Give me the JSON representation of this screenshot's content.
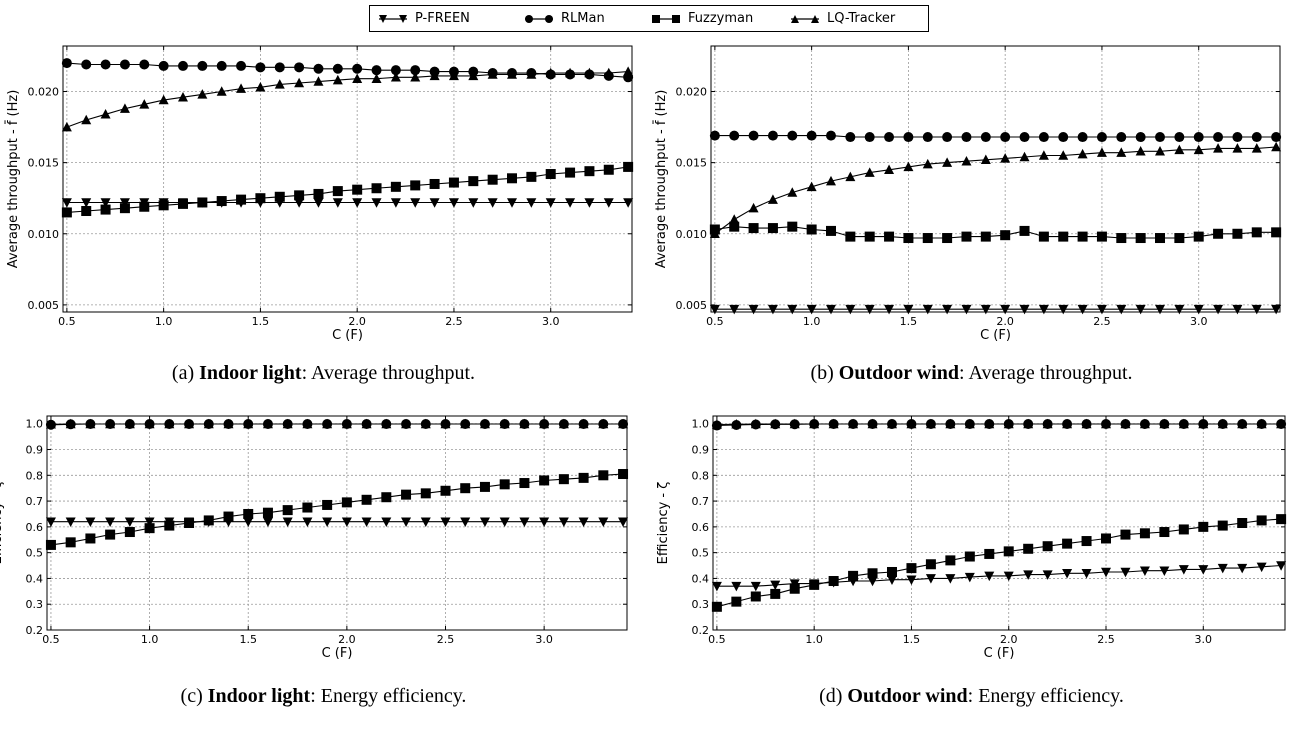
{
  "legend": {
    "entries": [
      {
        "label": "P-FREEN",
        "marker": "triangle-down"
      },
      {
        "label": "RLMan",
        "marker": "circle"
      },
      {
        "label": "Fuzzyman",
        "marker": "square"
      },
      {
        "label": "LQ-Tracker",
        "marker": "triangle-up"
      }
    ]
  },
  "captions": [
    {
      "prefix": "(a) ",
      "bold": "Indoor light",
      "rest": ": Average throughput."
    },
    {
      "prefix": "(b) ",
      "bold": "Outdoor wind",
      "rest": ": Average throughput."
    },
    {
      "prefix": "(c) ",
      "bold": "Indoor light",
      "rest": ": Energy efficiency."
    },
    {
      "prefix": "(d) ",
      "bold": "Outdoor wind",
      "rest": ": Energy efficiency."
    }
  ],
  "chart_data": [
    {
      "type": "line",
      "xlabel": "C (F)",
      "ylabel": "Average throughput - f̄ (Hz)",
      "xlim": [
        0.48,
        3.42
      ],
      "ylim": [
        0.0045,
        0.0232
      ],
      "xticks": [
        "0.5",
        "1.0",
        "1.5",
        "2.0",
        "2.5",
        "3.0"
      ],
      "yticks": [
        "0.005",
        "0.010",
        "0.015",
        "0.020"
      ],
      "grid": true,
      "x": [
        0.5,
        0.6,
        0.7,
        0.8,
        0.9,
        1.0,
        1.1,
        1.2,
        1.3,
        1.4,
        1.5,
        1.6,
        1.7,
        1.8,
        1.9,
        2.0,
        2.1,
        2.2,
        2.3,
        2.4,
        2.5,
        2.6,
        2.7,
        2.8,
        2.9,
        3.0,
        3.1,
        3.2,
        3.3,
        3.4
      ],
      "series": [
        {
          "name": "P-FREEN",
          "marker": "triangle-down",
          "values": [
            0.0122,
            0.0122,
            0.0122,
            0.0122,
            0.0122,
            0.0122,
            0.0122,
            0.0122,
            0.0122,
            0.0122,
            0.0122,
            0.0122,
            0.0122,
            0.0122,
            0.0122,
            0.0122,
            0.0122,
            0.0122,
            0.0122,
            0.0122,
            0.0122,
            0.0122,
            0.0122,
            0.0122,
            0.0122,
            0.0122,
            0.0122,
            0.0122,
            0.0122,
            0.0122
          ]
        },
        {
          "name": "RLMan",
          "marker": "circle",
          "values": [
            0.022,
            0.0219,
            0.0219,
            0.0219,
            0.0219,
            0.0218,
            0.0218,
            0.0218,
            0.0218,
            0.0218,
            0.0217,
            0.0217,
            0.0217,
            0.0216,
            0.0216,
            0.0216,
            0.0215,
            0.0215,
            0.0215,
            0.0214,
            0.0214,
            0.0214,
            0.0213,
            0.0213,
            0.0213,
            0.0212,
            0.0212,
            0.0212,
            0.0211,
            0.021
          ]
        },
        {
          "name": "Fuzzyman",
          "marker": "square",
          "values": [
            0.0115,
            0.0116,
            0.0117,
            0.0118,
            0.0119,
            0.012,
            0.0121,
            0.0122,
            0.0123,
            0.0124,
            0.0125,
            0.0126,
            0.0127,
            0.0128,
            0.013,
            0.0131,
            0.0132,
            0.0133,
            0.0134,
            0.0135,
            0.0136,
            0.0137,
            0.0138,
            0.0139,
            0.014,
            0.0142,
            0.0143,
            0.0144,
            0.0145,
            0.0147
          ]
        },
        {
          "name": "LQ-Tracker",
          "marker": "triangle-up",
          "values": [
            0.0175,
            0.018,
            0.0184,
            0.0188,
            0.0191,
            0.0194,
            0.0196,
            0.0198,
            0.02,
            0.0202,
            0.0203,
            0.0205,
            0.0206,
            0.0207,
            0.0208,
            0.0209,
            0.0209,
            0.021,
            0.021,
            0.0211,
            0.0211,
            0.0211,
            0.0212,
            0.0212,
            0.0212,
            0.0213,
            0.0213,
            0.0213,
            0.0213,
            0.0214
          ]
        }
      ]
    },
    {
      "type": "line",
      "xlabel": "C (F)",
      "ylabel": "Average throughput - f̄ (Hz)",
      "xlim": [
        0.48,
        3.42
      ],
      "ylim": [
        0.0045,
        0.0232
      ],
      "xticks": [
        "0.5",
        "1.0",
        "1.5",
        "2.0",
        "2.5",
        "3.0"
      ],
      "yticks": [
        "0.005",
        "0.010",
        "0.015",
        "0.020"
      ],
      "grid": true,
      "x": [
        0.5,
        0.6,
        0.7,
        0.8,
        0.9,
        1.0,
        1.1,
        1.2,
        1.3,
        1.4,
        1.5,
        1.6,
        1.7,
        1.8,
        1.9,
        2.0,
        2.1,
        2.2,
        2.3,
        2.4,
        2.5,
        2.6,
        2.7,
        2.8,
        2.9,
        3.0,
        3.1,
        3.2,
        3.3,
        3.4
      ],
      "series": [
        {
          "name": "P-FREEN",
          "marker": "triangle-down",
          "values": [
            0.0047,
            0.0047,
            0.0047,
            0.0047,
            0.0047,
            0.0047,
            0.0047,
            0.0047,
            0.0047,
            0.0047,
            0.0047,
            0.0047,
            0.0047,
            0.0047,
            0.0047,
            0.0047,
            0.0047,
            0.0047,
            0.0047,
            0.0047,
            0.0047,
            0.0047,
            0.0047,
            0.0047,
            0.0047,
            0.0047,
            0.0047,
            0.0047,
            0.0047,
            0.0047
          ]
        },
        {
          "name": "RLMan",
          "marker": "circle",
          "values": [
            0.0169,
            0.0169,
            0.0169,
            0.0169,
            0.0169,
            0.0169,
            0.0169,
            0.0168,
            0.0168,
            0.0168,
            0.0168,
            0.0168,
            0.0168,
            0.0168,
            0.0168,
            0.0168,
            0.0168,
            0.0168,
            0.0168,
            0.0168,
            0.0168,
            0.0168,
            0.0168,
            0.0168,
            0.0168,
            0.0168,
            0.0168,
            0.0168,
            0.0168,
            0.0168
          ]
        },
        {
          "name": "Fuzzyman",
          "marker": "square",
          "values": [
            0.0103,
            0.0105,
            0.0104,
            0.0104,
            0.0105,
            0.0103,
            0.0102,
            0.0098,
            0.0098,
            0.0098,
            0.0097,
            0.0097,
            0.0097,
            0.0098,
            0.0098,
            0.0099,
            0.0102,
            0.0098,
            0.0098,
            0.0098,
            0.0098,
            0.0097,
            0.0097,
            0.0097,
            0.0097,
            0.0098,
            0.01,
            0.01,
            0.0101,
            0.0101
          ]
        },
        {
          "name": "LQ-Tracker",
          "marker": "triangle-up",
          "values": [
            0.01,
            0.011,
            0.0118,
            0.0124,
            0.0129,
            0.0133,
            0.0137,
            0.014,
            0.0143,
            0.0145,
            0.0147,
            0.0149,
            0.015,
            0.0151,
            0.0152,
            0.0153,
            0.0154,
            0.0155,
            0.0155,
            0.0156,
            0.0157,
            0.0157,
            0.0158,
            0.0158,
            0.0159,
            0.0159,
            0.016,
            0.016,
            0.016,
            0.0161
          ]
        }
      ]
    },
    {
      "type": "line",
      "xlabel": "C (F)",
      "ylabel": "Efficiency - ζ",
      "xlim": [
        0.48,
        3.42
      ],
      "ylim": [
        0.2,
        1.03
      ],
      "xticks": [
        "0.5",
        "1.0",
        "1.5",
        "2.0",
        "2.5",
        "3.0"
      ],
      "yticks": [
        "0.2",
        "0.3",
        "0.4",
        "0.5",
        "0.6",
        "0.7",
        "0.8",
        "0.9",
        "1.0"
      ],
      "grid": true,
      "x": [
        0.5,
        0.6,
        0.7,
        0.8,
        0.9,
        1.0,
        1.1,
        1.2,
        1.3,
        1.4,
        1.5,
        1.6,
        1.7,
        1.8,
        1.9,
        2.0,
        2.1,
        2.2,
        2.3,
        2.4,
        2.5,
        2.6,
        2.7,
        2.8,
        2.9,
        3.0,
        3.1,
        3.2,
        3.3,
        3.4
      ],
      "series": [
        {
          "name": "P-FREEN",
          "marker": "triangle-down",
          "values": [
            0.62,
            0.62,
            0.62,
            0.62,
            0.62,
            0.62,
            0.62,
            0.62,
            0.62,
            0.62,
            0.62,
            0.62,
            0.62,
            0.62,
            0.62,
            0.62,
            0.62,
            0.62,
            0.62,
            0.62,
            0.62,
            0.62,
            0.62,
            0.62,
            0.62,
            0.62,
            0.62,
            0.62,
            0.62,
            0.62
          ]
        },
        {
          "name": "RLMan",
          "marker": "circle",
          "values": [
            0.996,
            0.998,
            0.999,
            0.999,
            0.999,
            0.999,
            0.999,
            0.999,
            0.999,
            0.999,
            0.999,
            0.999,
            0.999,
            0.999,
            0.999,
            0.999,
            0.999,
            0.999,
            0.999,
            0.999,
            0.999,
            0.999,
            0.999,
            0.999,
            0.999,
            0.999,
            0.999,
            0.999,
            0.999,
            0.999
          ]
        },
        {
          "name": "Fuzzyman",
          "marker": "square",
          "values": [
            0.53,
            0.54,
            0.555,
            0.57,
            0.58,
            0.595,
            0.605,
            0.615,
            0.625,
            0.64,
            0.65,
            0.655,
            0.665,
            0.675,
            0.685,
            0.695,
            0.705,
            0.715,
            0.725,
            0.73,
            0.74,
            0.75,
            0.755,
            0.765,
            0.77,
            0.78,
            0.785,
            0.79,
            0.8,
            0.805
          ]
        },
        {
          "name": "LQ-Tracker",
          "marker": "triangle-up",
          "values": [
            0.998,
            0.999,
            0.999,
            0.999,
            0.999,
            0.999,
            0.999,
            0.999,
            0.999,
            0.999,
            0.999,
            0.999,
            0.999,
            0.999,
            0.999,
            0.999,
            0.999,
            0.999,
            0.999,
            0.999,
            0.999,
            0.999,
            0.999,
            0.999,
            0.999,
            0.999,
            0.999,
            0.999,
            0.999,
            0.999
          ]
        }
      ]
    },
    {
      "type": "line",
      "xlabel": "C (F)",
      "ylabel": "Efficiency - ζ",
      "xlim": [
        0.48,
        3.42
      ],
      "ylim": [
        0.2,
        1.03
      ],
      "xticks": [
        "0.5",
        "1.0",
        "1.5",
        "2.0",
        "2.5",
        "3.0"
      ],
      "yticks": [
        "0.2",
        "0.3",
        "0.4",
        "0.5",
        "0.6",
        "0.7",
        "0.8",
        "0.9",
        "1.0"
      ],
      "grid": true,
      "x": [
        0.5,
        0.6,
        0.7,
        0.8,
        0.9,
        1.0,
        1.1,
        1.2,
        1.3,
        1.4,
        1.5,
        1.6,
        1.7,
        1.8,
        1.9,
        2.0,
        2.1,
        2.2,
        2.3,
        2.4,
        2.5,
        2.6,
        2.7,
        2.8,
        2.9,
        3.0,
        3.1,
        3.2,
        3.3,
        3.4
      ],
      "series": [
        {
          "name": "P-FREEN",
          "marker": "triangle-down",
          "values": [
            0.37,
            0.37,
            0.37,
            0.375,
            0.38,
            0.38,
            0.385,
            0.39,
            0.39,
            0.395,
            0.395,
            0.4,
            0.4,
            0.405,
            0.41,
            0.41,
            0.415,
            0.415,
            0.42,
            0.42,
            0.425,
            0.425,
            0.43,
            0.43,
            0.435,
            0.435,
            0.44,
            0.44,
            0.445,
            0.45
          ]
        },
        {
          "name": "RLMan",
          "marker": "circle",
          "values": [
            0.993,
            0.995,
            0.997,
            0.998,
            0.998,
            0.999,
            0.999,
            0.999,
            0.999,
            0.999,
            0.999,
            0.999,
            0.999,
            0.999,
            0.999,
            0.999,
            0.999,
            0.999,
            0.999,
            0.999,
            0.999,
            0.999,
            0.999,
            0.999,
            0.999,
            0.999,
            0.999,
            0.999,
            0.999,
            0.999
          ]
        },
        {
          "name": "Fuzzyman",
          "marker": "square",
          "values": [
            0.29,
            0.31,
            0.33,
            0.34,
            0.36,
            0.375,
            0.39,
            0.41,
            0.42,
            0.425,
            0.44,
            0.455,
            0.47,
            0.485,
            0.495,
            0.505,
            0.515,
            0.525,
            0.535,
            0.545,
            0.555,
            0.57,
            0.575,
            0.58,
            0.59,
            0.6,
            0.605,
            0.615,
            0.625,
            0.63
          ]
        },
        {
          "name": "LQ-Tracker",
          "marker": "triangle-up",
          "values": [
            0.997,
            0.998,
            0.999,
            0.999,
            0.999,
            0.999,
            0.999,
            0.999,
            0.999,
            0.999,
            0.999,
            0.999,
            0.999,
            0.999,
            0.999,
            0.999,
            0.999,
            0.999,
            0.999,
            0.999,
            0.999,
            0.999,
            0.999,
            0.999,
            0.999,
            0.999,
            0.999,
            0.999,
            0.999,
            0.999
          ]
        }
      ]
    }
  ]
}
